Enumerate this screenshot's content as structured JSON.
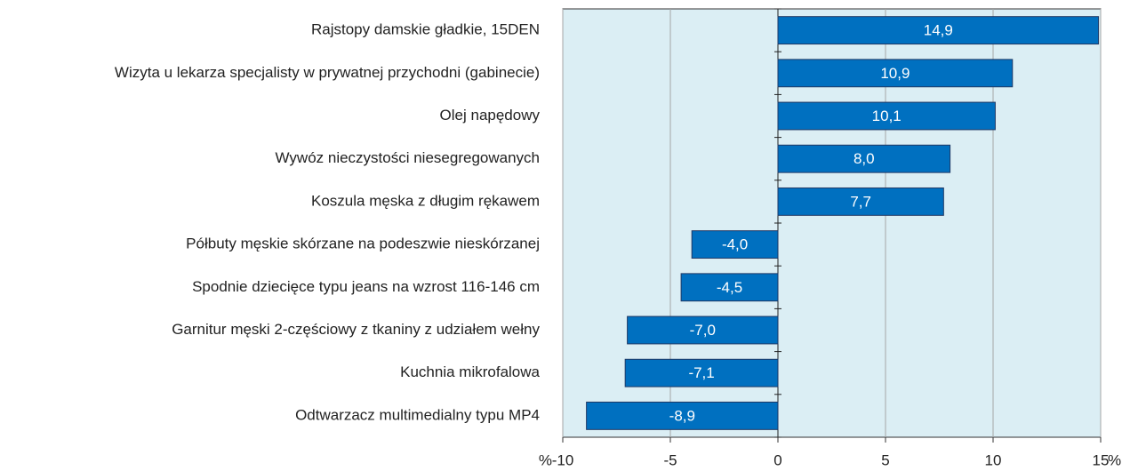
{
  "chart_data": {
    "type": "hbar",
    "categories": [
      "Rajstopy damskie gładkie, 15DEN",
      "Wizyta u lekarza specjalisty w prywatnej przychodni (gabinecie)",
      "Olej napędowy",
      "Wywóz nieczystości niesegregowanych",
      "Koszula męska z długim rękawem",
      "Półbuty męskie skórzane na podeszwie nieskórzanej",
      "Spodnie dziecięce typu jeans na wzrost 116-146 cm",
      "Garnitur męski 2-częściowy z tkaniny z udziałem wełny",
      "Kuchnia mikrofalowa",
      "Odtwarzacz multimedialny typu MP4"
    ],
    "values": [
      14.9,
      10.9,
      10.1,
      8.0,
      7.7,
      -4.0,
      -4.5,
      -7.0,
      -7.1,
      -8.9
    ],
    "value_labels": [
      "14,9",
      "10,9",
      "10,1",
      "8,0",
      "7,7",
      "-4,0",
      "-4,5",
      "-7,0",
      "-7,1",
      "-8,9"
    ],
    "color": "#0070c0",
    "xlim": [
      -10,
      15
    ],
    "xticks": [
      -10,
      -5,
      0,
      5,
      10,
      15
    ],
    "x_unit": "%",
    "grid": true
  }
}
